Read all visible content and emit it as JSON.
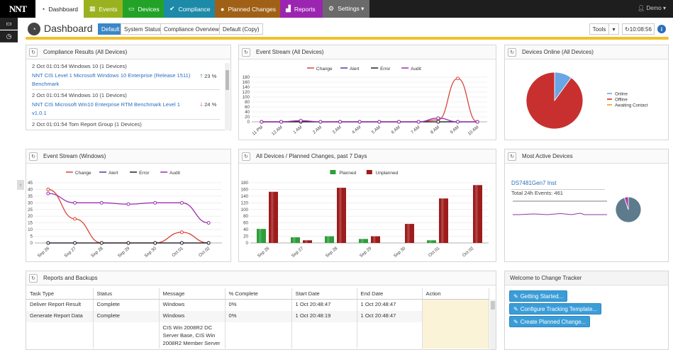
{
  "nav": {
    "logo": "NNT",
    "items": [
      {
        "label": "Dashboard",
        "icon": "dashboard-icon",
        "glyph": "◔",
        "bg": "#ffffff",
        "color": "#222222"
      },
      {
        "label": "Events",
        "icon": "calendar-icon",
        "glyph": "▦",
        "bg": "#9ab21f",
        "color": "#ffffff"
      },
      {
        "label": "Devices",
        "icon": "monitor-icon",
        "glyph": "▭",
        "bg": "#22a328",
        "color": "#ffffff"
      },
      {
        "label": "Compliance",
        "icon": "check-icon",
        "glyph": "✔",
        "bg": "#1c8aa8",
        "color": "#ffffff"
      },
      {
        "label": "Planned Changes",
        "icon": "comment-icon",
        "glyph": "●",
        "bg": "#a06116",
        "color": "#ffffff"
      },
      {
        "label": "Reports",
        "icon": "chart-icon",
        "glyph": "▟",
        "bg": "#9b25b0",
        "color": "#ffffff"
      },
      {
        "label": "Settings",
        "icon": "gear-icon",
        "glyph": "⚙",
        "bg": "#6a6a6a",
        "color": "#ffffff"
      }
    ],
    "user": "Demo"
  },
  "header": {
    "title": "Dashboard",
    "tabs": [
      "Default",
      "System Status",
      "Compliance Overview",
      "Default (Copy)"
    ],
    "active_tab": "Default",
    "tools": "Tools",
    "clock": "10:08:56"
  },
  "compliance": {
    "title": "Compliance Results (All Devices)",
    "items": [
      {
        "meta": "2 Oct 01:01:54 Windows 10 (1 Devices)",
        "link": [
          "NNT CIS Level 1 Microsoft Windows 10 Enterprise (Release 1511)",
          "Benchmark"
        ],
        "trend": "up",
        "pct": "23 %"
      },
      {
        "meta": "2 Oct 01:01:54 Windows 10 (1 Devices)",
        "link": [
          "NNT CIS Microsoft Win10 Enterprise RTM Benchmark Level 1",
          "v1.0.1"
        ],
        "trend": "down",
        "pct": "24 %"
      },
      {
        "meta": "2 Oct 01:01:54 Tom Report Group (1 Devices)"
      }
    ]
  },
  "event_all": {
    "title": "Event Stream (All Devices)"
  },
  "online": {
    "title": "Devices Online (All Devices)",
    "legend": [
      "Online",
      "Offline",
      "Awaiting Contact"
    ]
  },
  "event_win": {
    "title": "Event Stream (Windows)"
  },
  "planned": {
    "title": "All Devices / Planned Changes, past 7 Days"
  },
  "active": {
    "title": "Most Active Devices",
    "device": "DS7481Gen7 Inst",
    "events_label": "Total 24h Events: 461"
  },
  "reports": {
    "title": "Reports and Backups",
    "columns": [
      "Task Type",
      "Status",
      "Message",
      "% Complete",
      "Start Date",
      "End Date",
      "Action"
    ],
    "rows": [
      [
        "Deliver Report Result",
        "Complete",
        "Windows",
        "0%",
        "1 Oct 20:48:47",
        "1 Oct 20:48:47",
        ""
      ],
      [
        "Generate Report Data",
        "Complete",
        "Windows",
        "0%",
        "1 Oct 20:48:19",
        "1 Oct 20:48:47",
        ""
      ]
    ],
    "extra_message": [
      "CIS Win 2008R2 DC",
      "Server Base, CIS Win",
      "2008R2 Member Server"
    ]
  },
  "welcome": {
    "title": "Welcome to Change Tracker",
    "buttons": [
      "Getting Started...",
      "Configure Tracking Template...",
      "Create Planned Change..."
    ]
  },
  "chart_data": [
    {
      "type": "line",
      "id": "event_all",
      "x": [
        "11 PM",
        "12 AM",
        "1 AM",
        "2 AM",
        "3 AM",
        "4 AM",
        "5 AM",
        "6 AM",
        "7 AM",
        "8 AM",
        "9 AM",
        "10 AM"
      ],
      "ylim": [
        0,
        180
      ],
      "yticks": [
        0,
        20,
        40,
        60,
        80,
        100,
        120,
        140,
        160,
        180
      ],
      "legend_position": "top",
      "series": [
        {
          "name": "Change",
          "color": "#d9443a",
          "values": [
            0,
            0,
            2,
            0,
            0,
            0,
            0,
            0,
            0,
            8,
            175,
            0
          ]
        },
        {
          "name": "Alert",
          "color": "#3f3fa8",
          "values": [
            0,
            0,
            0,
            0,
            0,
            0,
            0,
            0,
            0,
            0,
            0,
            0
          ]
        },
        {
          "name": "Error",
          "color": "#222222",
          "values": [
            0,
            0,
            0,
            0,
            0,
            0,
            0,
            0,
            0,
            0,
            0,
            0
          ]
        },
        {
          "name": "Audit",
          "color": "#9b2fb0",
          "values": [
            0,
            0,
            5,
            0,
            0,
            0,
            0,
            0,
            0,
            15,
            0,
            0
          ]
        }
      ]
    },
    {
      "type": "pie",
      "id": "online",
      "labels": [
        "Online",
        "Offline",
        "Awaiting Contact"
      ],
      "values": [
        10,
        90,
        0
      ],
      "colors": [
        "#6aa6e6",
        "#c8302f",
        "#e8a020"
      ]
    },
    {
      "type": "line",
      "id": "event_win",
      "x": [
        "Sep 26",
        "Sep 27",
        "Sep 28",
        "Sep 29",
        "Sep 30",
        "Oct 01",
        "Oct 02"
      ],
      "ylim": [
        0,
        45
      ],
      "yticks": [
        0,
        5,
        10,
        15,
        20,
        25,
        30,
        35,
        40,
        45
      ],
      "legend_position": "top",
      "series": [
        {
          "name": "Change",
          "color": "#d9443a",
          "values": [
            40,
            18,
            0,
            0,
            0,
            8,
            0
          ]
        },
        {
          "name": "Alert",
          "color": "#3f3fa8",
          "values": [
            0,
            0,
            0,
            0,
            0,
            0,
            0
          ]
        },
        {
          "name": "Error",
          "color": "#222222",
          "values": [
            0,
            0,
            0,
            0,
            0,
            0,
            0
          ]
        },
        {
          "name": "Audit",
          "color": "#9b2fb0",
          "values": [
            37,
            30,
            30,
            29,
            30,
            30,
            15
          ]
        }
      ]
    },
    {
      "type": "bar",
      "id": "planned",
      "categories": [
        "Sep 26",
        "Sep 27",
        "Sep 28",
        "Sep 29",
        "Sep 30",
        "Oct 01",
        "Oct 02"
      ],
      "ylim": [
        0,
        180
      ],
      "yticks": [
        0,
        20,
        40,
        60,
        80,
        100,
        120,
        140,
        160,
        180
      ],
      "legend_position": "top",
      "series": [
        {
          "name": "Planned",
          "color": "#2e9e3a",
          "values": [
            42,
            17,
            20,
            12,
            0,
            8,
            0
          ]
        },
        {
          "name": "Unplanned",
          "color": "#9e1c1c",
          "values": [
            153,
            8,
            165,
            20,
            57,
            133,
            173
          ]
        }
      ]
    },
    {
      "type": "pie",
      "id": "active",
      "values": [
        95,
        5
      ],
      "colors": [
        "#5d7b8c",
        "#a63aa8"
      ]
    }
  ]
}
